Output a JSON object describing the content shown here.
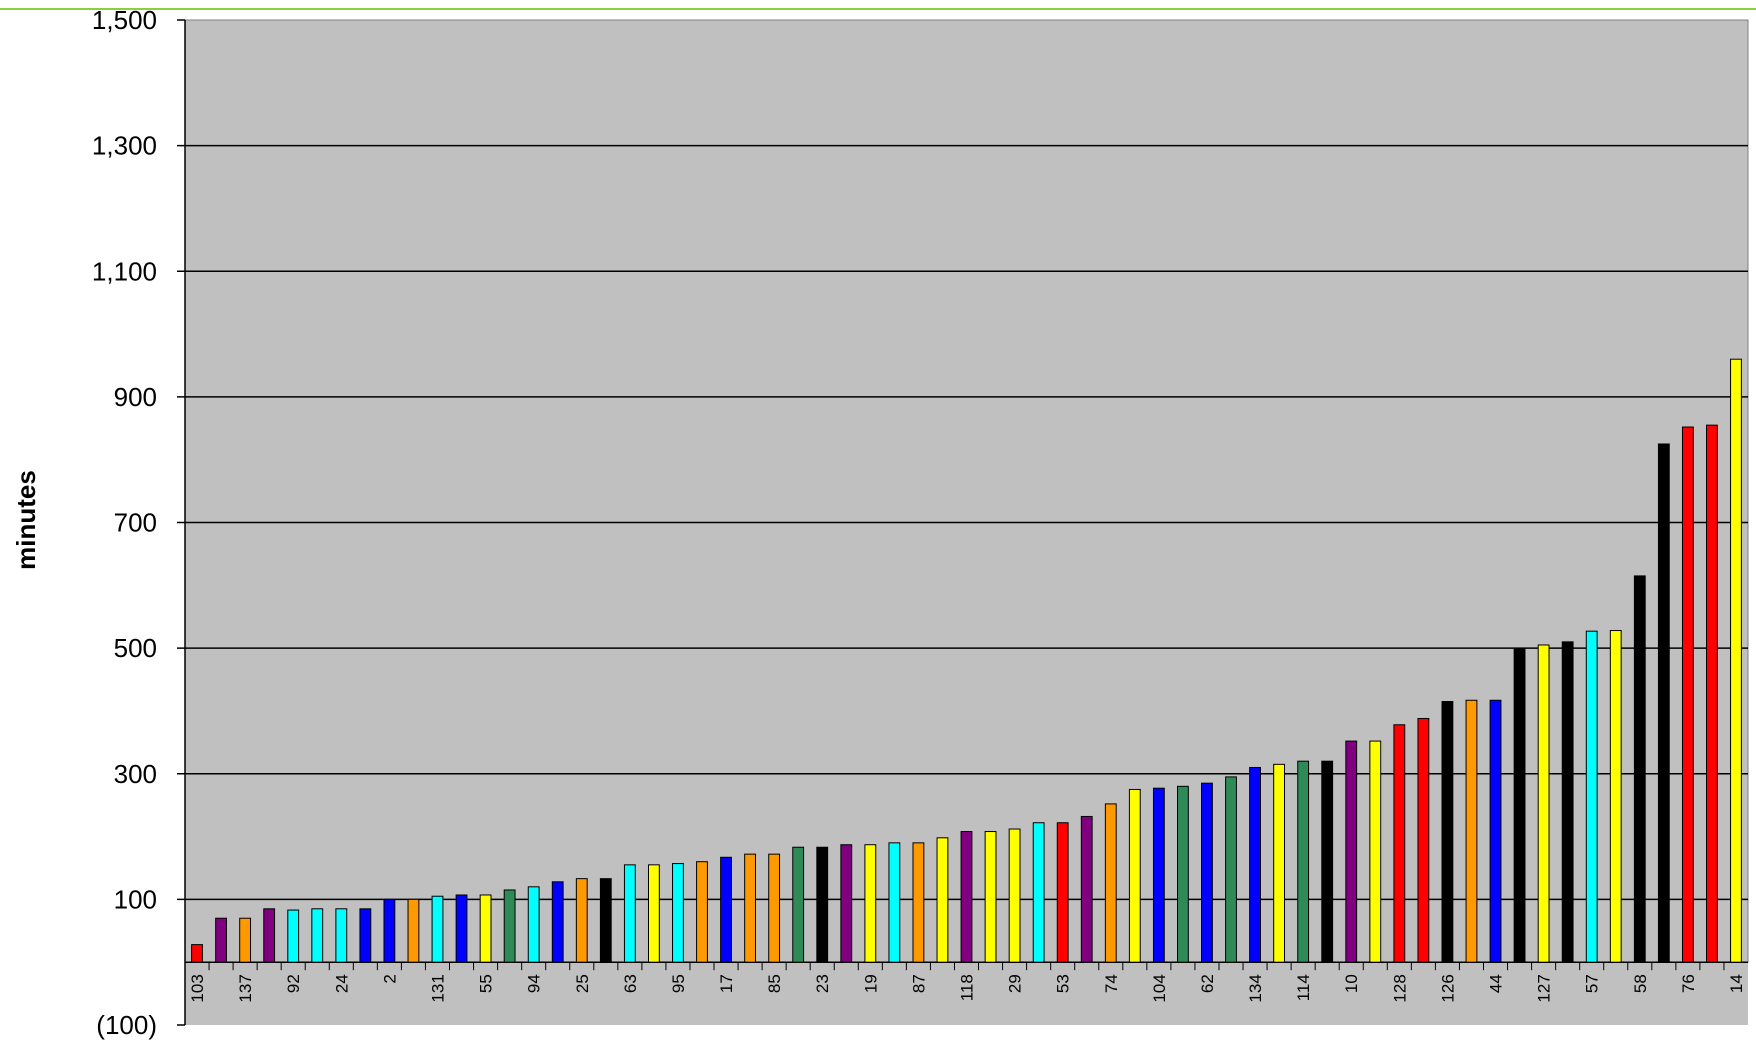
{
  "chart_data": {
    "type": "bar",
    "title": "",
    "xlabel": "",
    "ylabel": "minutes",
    "ylim": [
      -100,
      1500
    ],
    "yticks": [
      -100,
      100,
      300,
      500,
      700,
      900,
      1100,
      1300,
      1500
    ],
    "ytick_labels": [
      "(100)",
      "100",
      "300",
      "500",
      "700",
      "900",
      "1,100",
      "1,300",
      "1,500"
    ],
    "gridlines": true,
    "plot_background": "#c0c0c0",
    "categories": [
      "103",
      "",
      "137",
      "",
      "92",
      "",
      "24",
      "",
      "2",
      "",
      "131",
      "",
      "55",
      "",
      "94",
      "",
      "25",
      "",
      "63",
      "",
      "95",
      "",
      "17",
      "",
      "85",
      "",
      "23",
      "",
      "19",
      "",
      "87",
      "",
      "118",
      "",
      "29",
      "",
      "53",
      "",
      "74",
      "",
      "104",
      "",
      "62",
      "",
      "134",
      "",
      "114",
      "",
      "10",
      "",
      "128",
      "",
      "126",
      "",
      "44",
      "",
      "127",
      "",
      "57",
      "",
      "58",
      "",
      "76",
      "",
      "14"
    ],
    "values": [
      28,
      70,
      70,
      85,
      83,
      85,
      85,
      85,
      100,
      100,
      105,
      107,
      107,
      115,
      120,
      128,
      133,
      133,
      155,
      155,
      157,
      160,
      167,
      172,
      172,
      183,
      183,
      187,
      187,
      190,
      190,
      198,
      208,
      208,
      212,
      222,
      222,
      232,
      252,
      275,
      277,
      280,
      285,
      295,
      310,
      315,
      320,
      320,
      352,
      352,
      378,
      388,
      415,
      417,
      417,
      500,
      505,
      510,
      527,
      528,
      615,
      825,
      852,
      855,
      960
    ],
    "colors": [
      "#ff0000",
      "#800080",
      "#ff9900",
      "#800080",
      "#00ffff",
      "#00ffff",
      "#00ffff",
      "#0000ff",
      "#0000ff",
      "#ff9900",
      "#00ffff",
      "#0000ff",
      "#ffff00",
      "#2e8b57",
      "#00ffff",
      "#0000ff",
      "#ff9900",
      "#000000",
      "#00ffff",
      "#ffff00",
      "#00ffff",
      "#ff9900",
      "#0000ff",
      "#ff9900",
      "#ff9900",
      "#2e8b57",
      "#000000",
      "#800080",
      "#ffff00",
      "#00ffff",
      "#ff9900",
      "#ffff00",
      "#800080",
      "#ffff00",
      "#ffff00",
      "#00ffff",
      "#ff0000",
      "#800080",
      "#ff9900",
      "#ffff00",
      "#0000ff",
      "#2e8b57",
      "#0000ff",
      "#2e8b57",
      "#0000ff",
      "#ffff00",
      "#2e8b57",
      "#000000",
      "#800080",
      "#ffff00",
      "#ff0000",
      "#ff0000",
      "#000000",
      "#ff9900",
      "#0000ff",
      "#000000",
      "#ffff00",
      "#000000",
      "#00ffff",
      "#ffff00",
      "#000000",
      "#000000",
      "#ff0000",
      "#ff0000",
      "#ffff00"
    ]
  }
}
